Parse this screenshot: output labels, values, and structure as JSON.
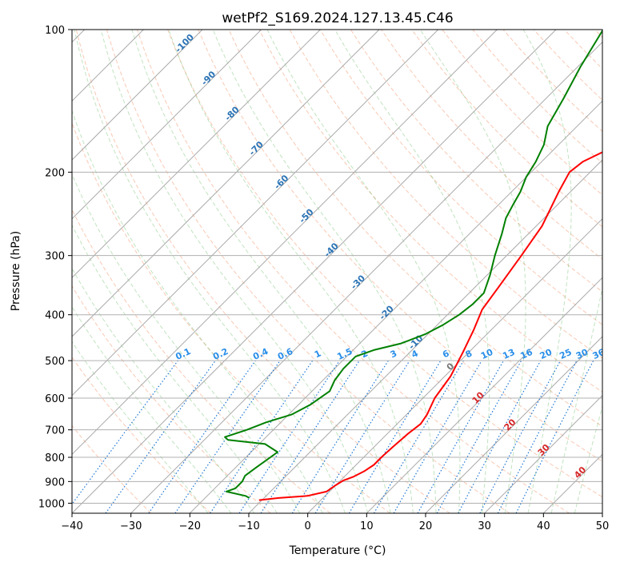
{
  "chart_data": {
    "type": "line",
    "title": "wetPf2_S169.2024.127.13.45.C46",
    "xlabel": "Temperature (°C)",
    "ylabel": "Pressure (hPa)",
    "xlim": [
      -40,
      50
    ],
    "ylim": [
      1050,
      100
    ],
    "y_scale": "log",
    "x_ticks": [
      -40,
      -30,
      -20,
      -10,
      0,
      10,
      20,
      30,
      40,
      50
    ],
    "y_ticks": [
      100,
      200,
      300,
      400,
      500,
      600,
      700,
      800,
      900,
      1000
    ],
    "grid": true,
    "skew": 45,
    "series": [
      {
        "color": "#ff0000",
        "x": [
          -10.5,
          -7.5,
          -3,
          -0.5,
          0,
          0.5,
          1.5,
          2.5,
          3,
          3,
          3.2,
          3.5,
          4,
          3.5,
          2,
          1,
          -1,
          -3,
          -5,
          -6,
          -7.5,
          -9,
          -12,
          -13.5,
          -13,
          -11,
          -10,
          -11,
          -14.5,
          -19.5,
          -26
        ],
        "y": [
          985,
          975,
          965,
          945,
          915,
          895,
          880,
          855,
          830,
          800,
          760,
          715,
          680,
          650,
          600,
          540,
          480,
          430,
          390,
          350,
          300,
          260,
          220,
          200,
          190,
          180,
          170,
          150,
          130,
          112,
          100
        ]
      },
      {
        "color": "#008000",
        "x": [
          -12.5,
          -13.5,
          -17.5,
          -16.5,
          -16.5,
          -17,
          -16.5,
          -16,
          -15.5,
          -19,
          -26,
          -27,
          -24.5,
          -22.5,
          -19.5,
          -18,
          -17,
          -18,
          -18.5,
          -18.5,
          -16.5,
          -13,
          -10.5,
          -9,
          -8,
          -7.5,
          -7.5,
          -9.5,
          -12,
          -14.5,
          -16.5,
          -17.5,
          -18.5,
          -20,
          -21,
          -22.5,
          -25,
          -27,
          -29.5,
          -32
        ],
        "y": [
          975,
          965,
          945,
          930,
          900,
          875,
          840,
          810,
          780,
          750,
          735,
          725,
          700,
          675,
          650,
          620,
          580,
          550,
          520,
          490,
          475,
          460,
          440,
          420,
          400,
          380,
          360,
          330,
          300,
          270,
          250,
          235,
          220,
          205,
          190,
          175,
          160,
          140,
          120,
          100
        ]
      }
    ],
    "dry_adiabat_labels": [
      "-100",
      "-90",
      "-80",
      "-70",
      "-60",
      "-50",
      "-40",
      "-30",
      "-20",
      "-10",
      "0",
      "10",
      "20",
      "30",
      "40"
    ],
    "mixing_ratio_labels": [
      "0.1",
      "0.2",
      "0.4",
      "0.6",
      "1",
      "1.5",
      "2",
      "3",
      "4",
      "6",
      "8",
      "10",
      "13",
      "16",
      "20",
      "25",
      "30",
      "36"
    ]
  }
}
